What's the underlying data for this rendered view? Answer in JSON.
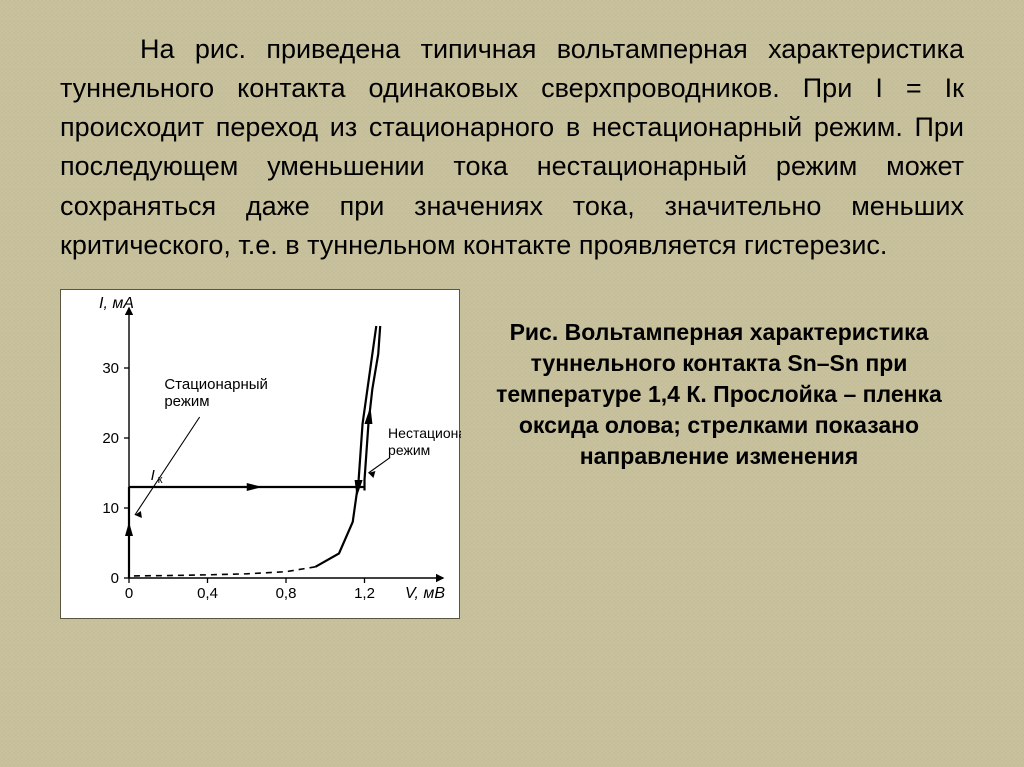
{
  "main_paragraph": "На рис. приведена типичная вольтамперная характеристика туннельного контакта одинаковых сверхпроводников. При I = Iк происходит переход из стационарного в нестационарный режим. При последующем уменьшении тока нестационарный режим может сохраняться даже при значениях тока, значительно меньших критического, т.е. в туннельном контакте проявляется гистерезис.",
  "caption": "Рис. Вольтамперная характеристика туннельного контакта Sn–Sn при температуре 1,4 К. Прослойка – пленка оксида олова; стрелками показано направление изменения",
  "chart": {
    "type": "line",
    "y_label": "I, мА",
    "x_label": "V, мВ",
    "y_ticks": [
      0,
      10,
      20,
      30
    ],
    "x_ticks": [
      0,
      0.4,
      0.8,
      1.2
    ],
    "x_tick_labels": [
      "0",
      "0,4",
      "0,8",
      "1,2"
    ],
    "xlim": [
      0,
      1.6
    ],
    "ylim": [
      0,
      38
    ],
    "axis_color": "#000000",
    "line_color": "#000000",
    "background_color": "#ffffff",
    "line_width_main": 2.2,
    "line_width_dash": 1.6,
    "tick_fontsize": 15,
    "label_fontsize": 16,
    "annotation_fontsize": 15,
    "annotations": {
      "stationary": "Стационарный\nрежим",
      "nonstationary": "Нестационарный\nрежим",
      "Ik": "Iк"
    },
    "series": {
      "vertical_rise": {
        "from": {
          "x": 0,
          "y": 0
        },
        "to": {
          "x": 0,
          "y": 13
        }
      },
      "horizontal_jump": {
        "from": {
          "x": 0,
          "y": 13
        },
        "to": {
          "x": 1.2,
          "y": 13
        }
      },
      "right_curve": [
        {
          "x": 1.2,
          "y": 12.5
        },
        {
          "x": 1.2,
          "y": 14
        },
        {
          "x": 1.21,
          "y": 18
        },
        {
          "x": 1.22,
          "y": 22
        },
        {
          "x": 1.24,
          "y": 27
        },
        {
          "x": 1.27,
          "y": 32
        },
        {
          "x": 1.28,
          "y": 36
        }
      ],
      "right_down": [
        {
          "x": 1.26,
          "y": 36
        },
        {
          "x": 1.23,
          "y": 30
        },
        {
          "x": 1.19,
          "y": 22
        },
        {
          "x": 1.17,
          "y": 14
        },
        {
          "x": 1.14,
          "y": 8
        },
        {
          "x": 1.07,
          "y": 3.5
        },
        {
          "x": 0.95,
          "y": 1.6
        }
      ],
      "dashed_return": [
        {
          "x": 0.95,
          "y": 1.6
        },
        {
          "x": 0.8,
          "y": 0.9
        },
        {
          "x": 0.6,
          "y": 0.6
        },
        {
          "x": 0.4,
          "y": 0.45
        },
        {
          "x": 0.2,
          "y": 0.35
        },
        {
          "x": 0.02,
          "y": 0.3
        }
      ]
    }
  }
}
